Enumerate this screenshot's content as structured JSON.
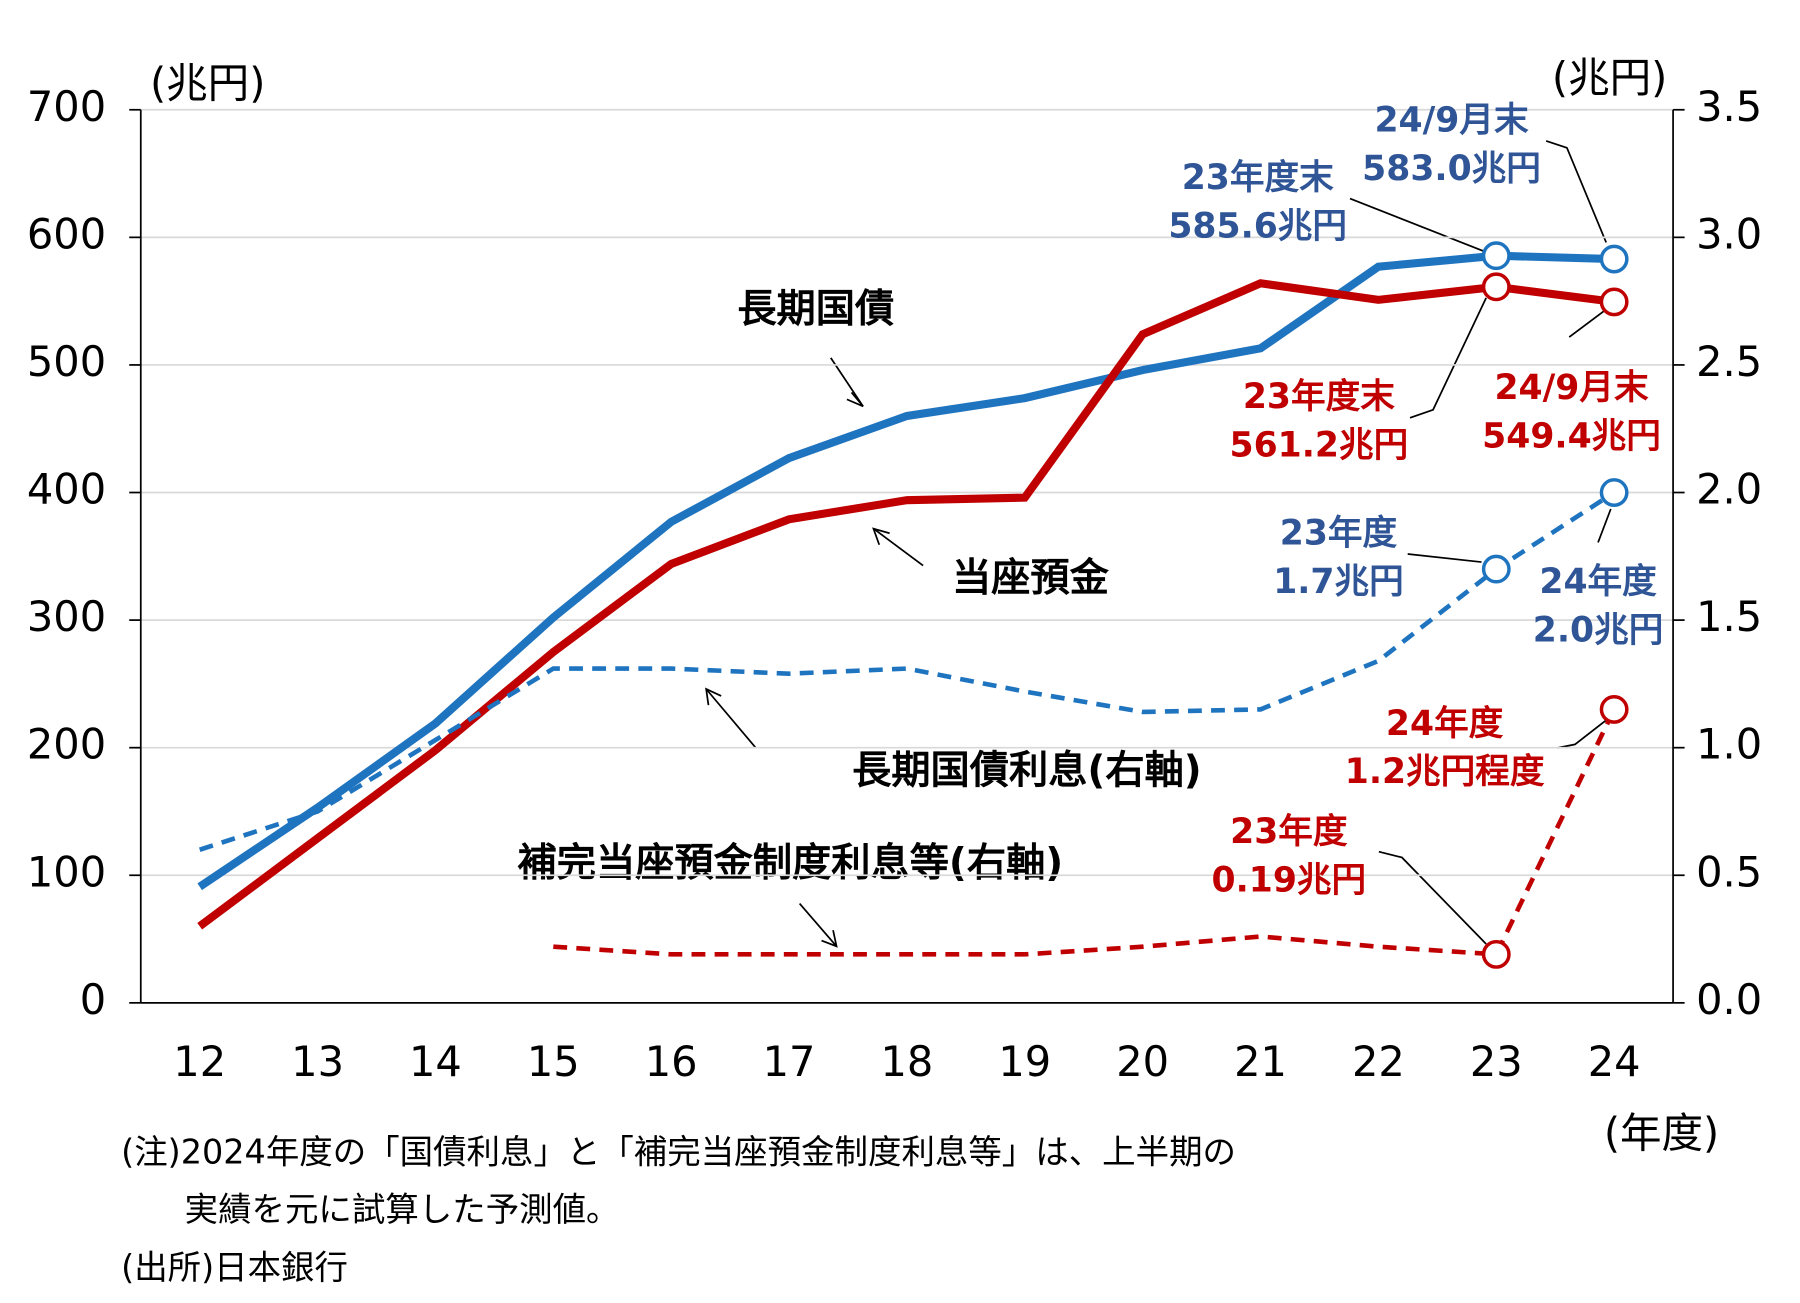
{
  "chart_data": {
    "type": "line",
    "categories": [
      "12",
      "13",
      "14",
      "15",
      "16",
      "17",
      "18",
      "19",
      "20",
      "21",
      "22",
      "23",
      "24"
    ],
    "series": [
      {
        "name": "長期国債",
        "color": "#1f74c0",
        "axis": "y",
        "dashed": false,
        "values": [
          91,
          153,
          219,
          302,
          377,
          427,
          460,
          474,
          496,
          513,
          577,
          585.6,
          583.0
        ]
      },
      {
        "name": "当座預金",
        "color": "#c00000",
        "axis": "y",
        "dashed": false,
        "values": [
          60,
          129,
          198,
          275,
          344,
          379,
          394,
          396,
          524,
          564,
          551,
          561.2,
          549.4
        ]
      },
      {
        "name": "長期国債利息(右軸)",
        "color": "#1f74c0",
        "axis": "y2",
        "dashed": true,
        "values": [
          0.6,
          0.75,
          1.03,
          1.31,
          1.31,
          1.29,
          1.31,
          1.22,
          1.14,
          1.15,
          1.34,
          1.7,
          2.0
        ]
      },
      {
        "name": "補完当座預金制度利息等(右軸)",
        "color": "#c00000",
        "axis": "y2",
        "dashed": true,
        "values": [
          null,
          null,
          null,
          0.22,
          0.19,
          0.19,
          0.19,
          0.19,
          0.22,
          0.26,
          0.22,
          0.19,
          1.15
        ]
      }
    ],
    "ylim": [
      0,
      700
    ],
    "yticks": [
      0,
      100,
      200,
      300,
      400,
      500,
      600,
      700
    ],
    "y2lim": [
      0,
      3.5
    ],
    "y2ticks": [
      {
        "value": 0,
        "label": "0.0"
      },
      0.5,
      {
        "value": 1,
        "label": "1.0"
      },
      1.5,
      {
        "value": 2,
        "label": "2.0"
      },
      2.5,
      {
        "value": 3,
        "label": "3.0"
      },
      3.5
    ],
    "ylabel": "(兆円)",
    "y2label": "(兆円)",
    "xlabel": "(年度)",
    "grid": true,
    "annotations": [
      {
        "lines": [
          "23年度末",
          "585.6兆円"
        ],
        "color": "#2f5597"
      },
      {
        "lines": [
          "24/9月末",
          "583.0兆円"
        ],
        "color": "#2f5597"
      },
      {
        "lines": [
          "23年度末",
          "561.2兆円"
        ],
        "color": "#c00000"
      },
      {
        "lines": [
          "24/9月末",
          "549.4兆円"
        ],
        "color": "#c00000"
      },
      {
        "lines": [
          "23年度",
          "1.7兆円"
        ],
        "color": "#2f5597"
      },
      {
        "lines": [
          "24年度",
          "2.0兆円"
        ],
        "color": "#2f5597"
      },
      {
        "lines": [
          "24年度",
          "1.2兆円程度"
        ],
        "color": "#c00000"
      },
      {
        "lines": [
          "23年度",
          "0.19兆円"
        ],
        "color": "#c00000"
      }
    ],
    "notes": [
      "(注)2024年度の「国債利息」と「補完当座預金制度利息等」は、上半期の",
      "実績を元に試算した予測値。",
      "(出所)日本銀行"
    ]
  }
}
